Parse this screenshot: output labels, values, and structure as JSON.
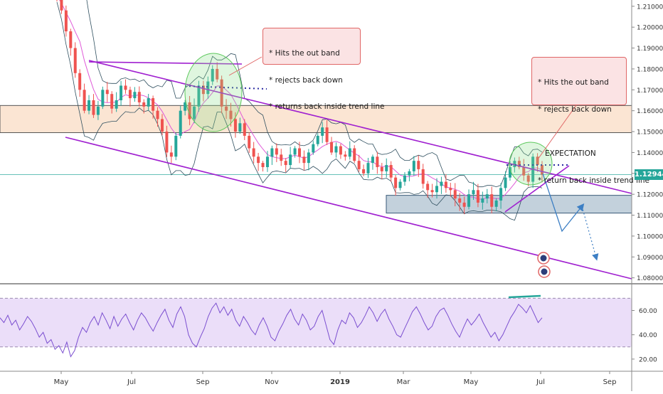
{
  "chart_data": [
    {
      "type": "candlestick",
      "pair": "",
      "current_price": "1.12944",
      "ylim": [
        1.0775,
        1.213
      ],
      "y_ticks": [
        "1.21000",
        "1.20000",
        "1.19000",
        "1.18000",
        "1.17000",
        "1.16000",
        "1.15000",
        "1.14000",
        "1.13000",
        "1.12000",
        "1.11000",
        "1.10000",
        "1.09000",
        "1.08000"
      ],
      "x_ticks": [
        "May",
        "Jul",
        "Sep",
        "Nov",
        "2019",
        "Mar",
        "May",
        "Jul",
        "Sep"
      ],
      "zones": [
        {
          "name": "resistance-zone",
          "from": 1.1495,
          "to": 1.1625,
          "color": "#f9dcc4"
        },
        {
          "name": "support-zone",
          "from": 1.111,
          "to": 1.1195,
          "color": "#b9c9d6"
        }
      ],
      "annotations": [
        {
          "id": "note_left",
          "lines": [
            "* Hits the out band",
            "* rejects back down",
            "* returns back inside trend line"
          ]
        },
        {
          "id": "note_right",
          "lines": [
            "* Hits the out band",
            "* rejects back down",
            "",
            "   EXPECTATION",
            "* return back inside trend line"
          ]
        }
      ],
      "close_series": [
        1.215,
        1.208,
        1.198,
        1.19,
        1.178,
        1.17,
        1.16,
        1.165,
        1.158,
        1.162,
        1.17,
        1.168,
        1.161,
        1.165,
        1.172,
        1.17,
        1.166,
        1.169,
        1.164,
        1.162,
        1.166,
        1.16,
        1.156,
        1.15,
        1.14,
        1.138,
        1.148,
        1.16,
        1.164,
        1.156,
        1.162,
        1.172,
        1.168,
        1.174,
        1.18,
        1.175,
        1.162,
        1.16,
        1.156,
        1.15,
        1.154,
        1.148,
        1.142,
        1.138,
        1.135,
        1.133,
        1.138,
        1.142,
        1.139,
        1.136,
        1.134,
        1.139,
        1.142,
        1.138,
        1.135,
        1.14,
        1.144,
        1.148,
        1.152,
        1.145,
        1.14,
        1.143,
        1.139,
        1.138,
        1.142,
        1.136,
        1.132,
        1.13,
        1.135,
        1.138,
        1.133,
        1.131,
        1.134,
        1.128,
        1.123,
        1.126,
        1.129,
        1.131,
        1.136,
        1.132,
        1.125,
        1.122,
        1.121,
        1.124,
        1.126,
        1.123,
        1.122,
        1.118,
        1.116,
        1.114,
        1.12,
        1.122,
        1.116,
        1.118,
        1.12,
        1.114,
        1.117,
        1.123,
        1.128,
        1.133,
        1.136,
        1.133,
        1.129,
        1.126,
        1.138,
        1.134,
        1.1294
      ]
    },
    {
      "type": "line",
      "indicator": "",
      "ylim": [
        10,
        79
      ],
      "y_ticks": [
        "60.00",
        "40.00",
        "20.00"
      ],
      "band": [
        30,
        70
      ],
      "values": [
        54,
        50,
        56,
        48,
        52,
        44,
        49,
        55,
        51,
        45,
        38,
        42,
        33,
        36,
        28,
        31,
        25,
        34,
        22,
        27,
        38,
        46,
        42,
        50,
        55,
        48,
        58,
        52,
        45,
        55,
        47,
        53,
        57,
        50,
        44,
        52,
        58,
        54,
        48,
        43,
        50,
        56,
        61,
        52,
        46,
        57,
        63,
        55,
        40,
        33,
        30,
        38,
        45,
        55,
        62,
        66,
        58,
        63,
        56,
        61,
        52,
        47,
        55,
        50,
        44,
        40,
        48,
        54,
        47,
        38,
        35,
        43,
        49,
        56,
        61,
        53,
        48,
        57,
        52,
        44,
        47,
        55,
        60,
        48,
        36,
        32,
        44,
        52,
        49,
        58,
        54,
        46,
        50,
        56,
        63,
        58,
        51,
        57,
        61,
        53,
        47,
        40,
        38,
        45,
        52,
        59,
        63,
        57,
        50,
        44,
        47,
        55,
        60,
        62,
        56,
        49,
        43,
        38,
        46,
        53,
        48,
        52,
        57,
        50,
        44,
        38,
        42,
        35,
        40,
        47,
        54,
        59,
        65,
        62,
        58,
        64,
        57,
        50,
        54
      ]
    }
  ]
}
